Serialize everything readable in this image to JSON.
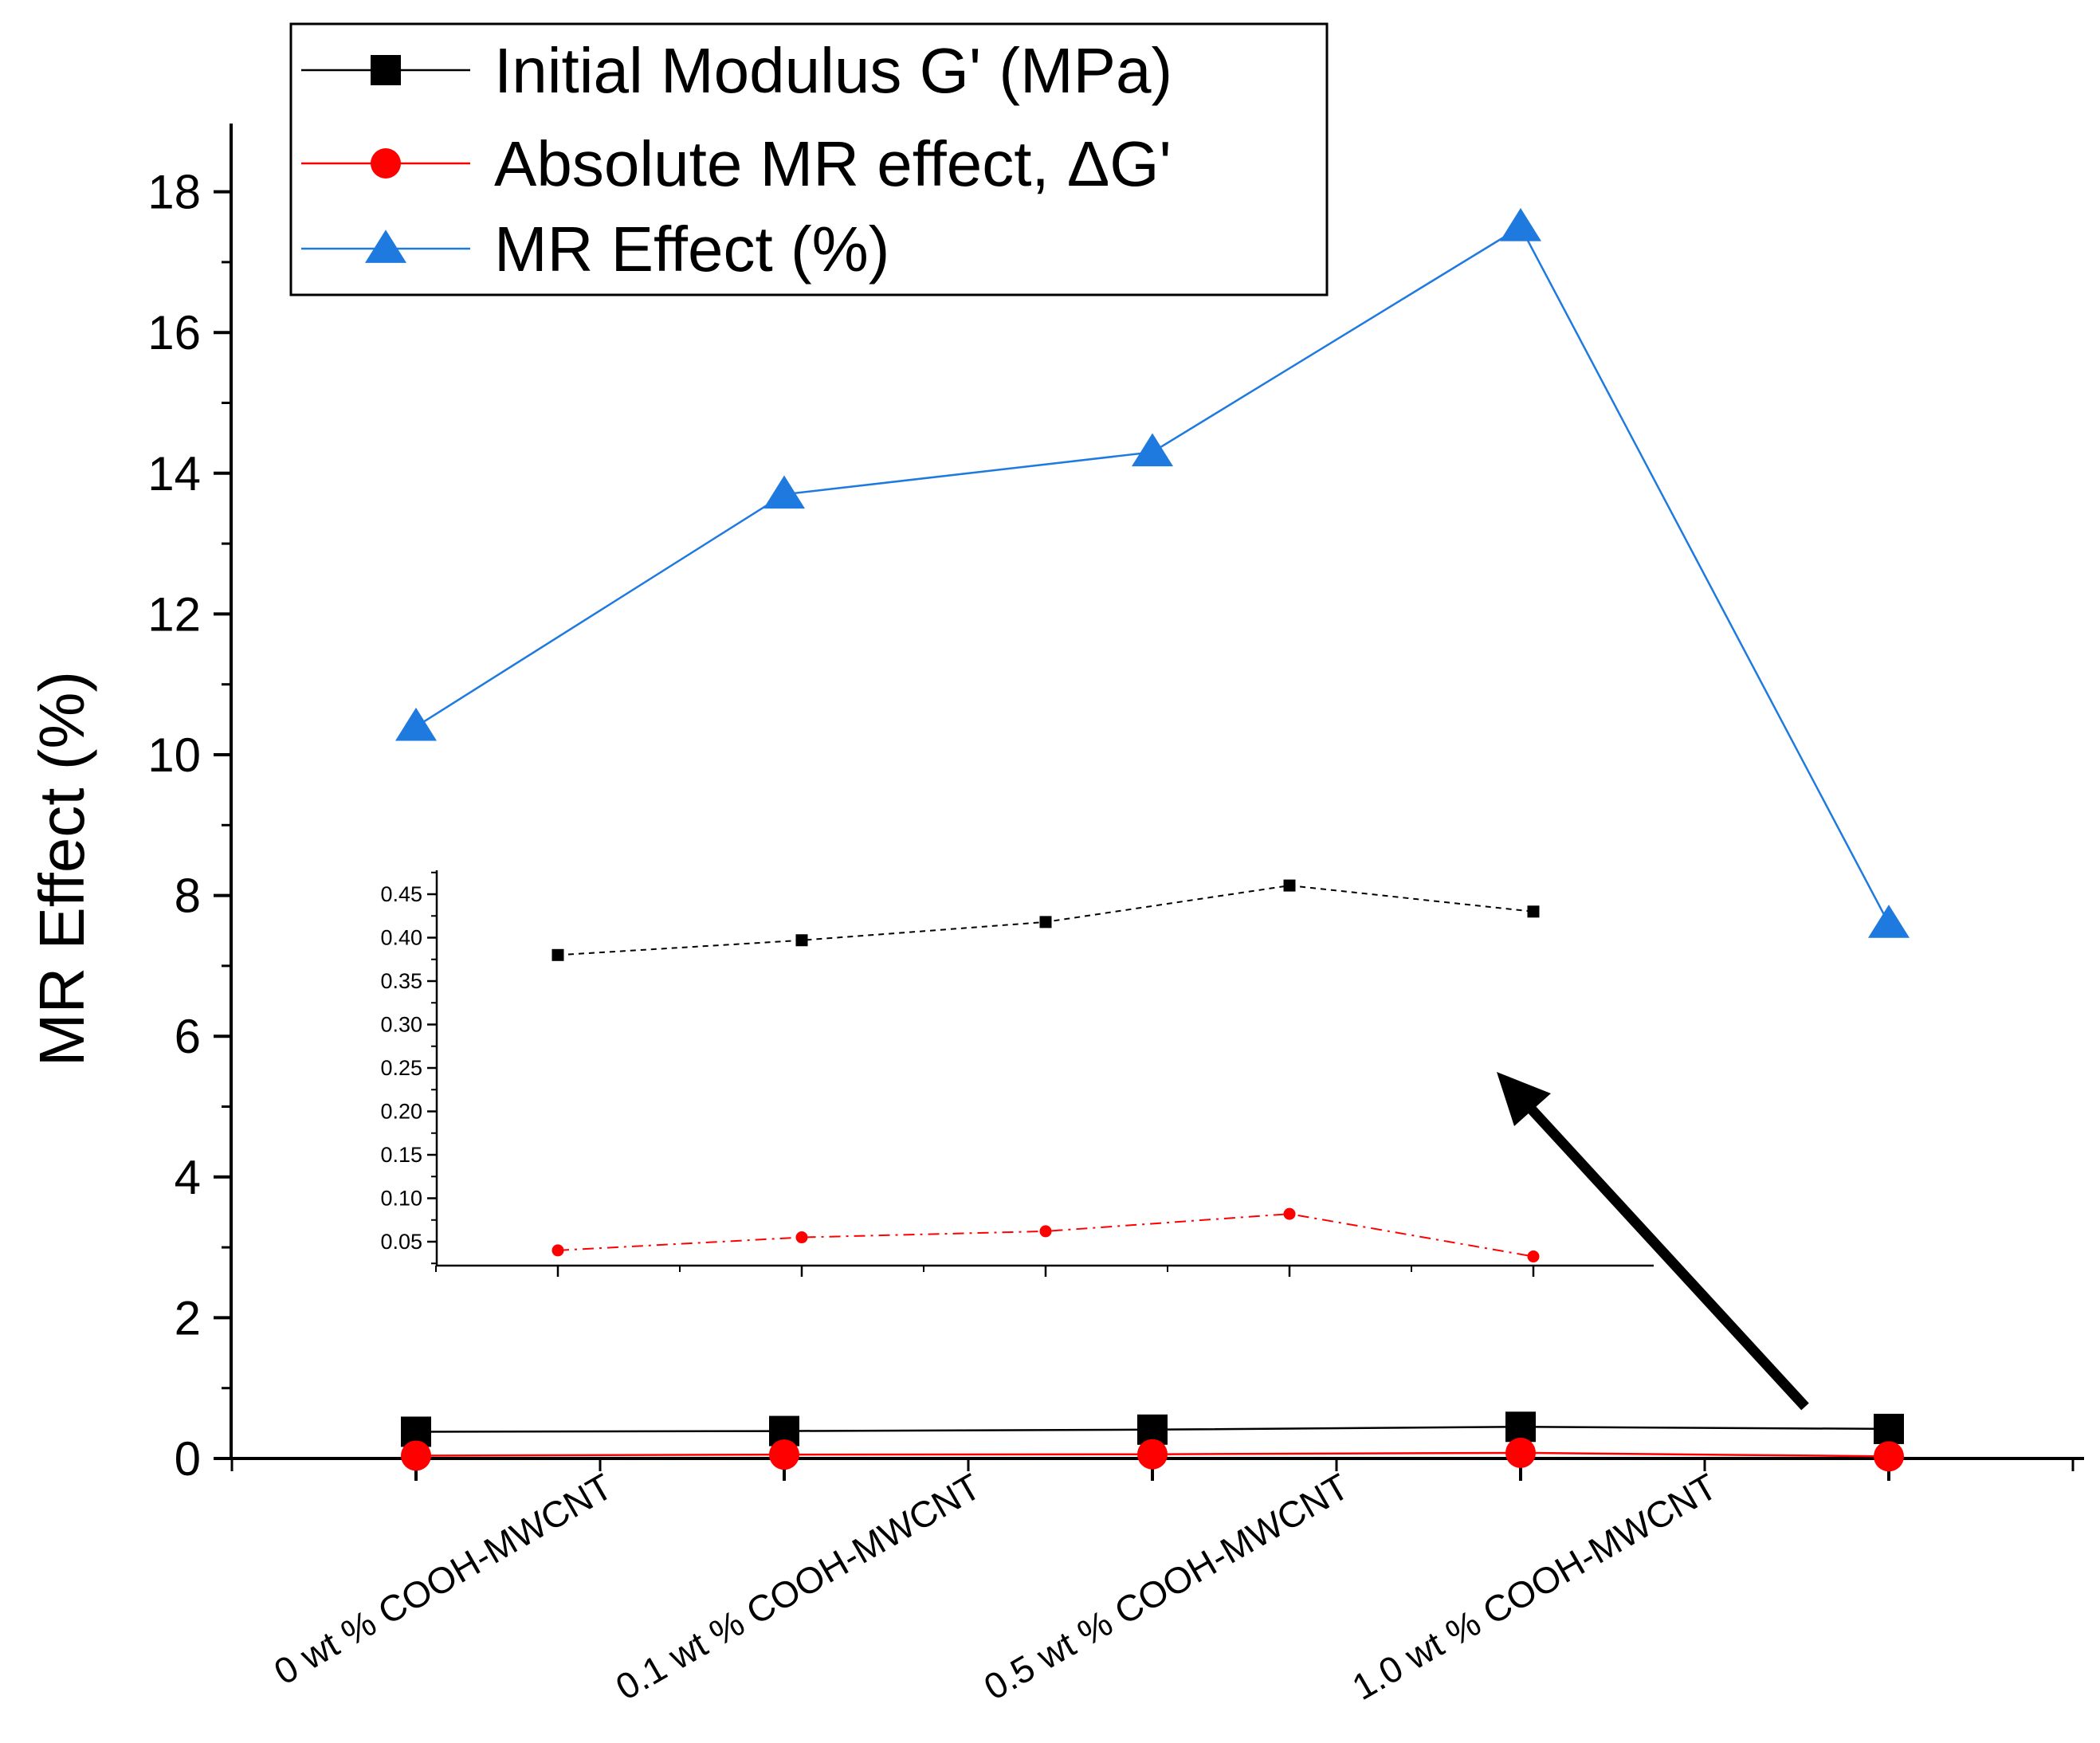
{
  "chart_data": [
    {
      "id": "main",
      "type": "line",
      "title": "",
      "xlabel": "",
      "ylabel": "MR Effect (%)",
      "ylim": [
        0,
        19
      ],
      "yticks": [
        0,
        2,
        4,
        6,
        8,
        10,
        12,
        14,
        16,
        18
      ],
      "categories": [
        "0 wt % COOH-MWCNT",
        "0.1 wt % COOH-MWCNT",
        "0.5 wt % COOH-MWCNT",
        "1.0 wt % COOH-MWCNT",
        ""
      ],
      "labeled_categories": [
        "0 wt % COOH-MWCNT",
        "0.1 wt % COOH-MWCNT",
        "0.5 wt % COOH-MWCNT",
        "1.0 wt % COOH-MWCNT"
      ],
      "legend_position": "top-left",
      "series": [
        {
          "name": "Initial Modulus G' (MPa)",
          "color": "#000000",
          "marker": "square",
          "values": [
            0.38,
            0.39,
            0.41,
            0.45,
            0.42
          ]
        },
        {
          "name": "Absolute MR effect, ΔG'",
          "color": "#ff0000",
          "marker": "circle",
          "values": [
            0.04,
            0.055,
            0.06,
            0.08,
            0.03
          ]
        },
        {
          "name": "MR Effect (%)",
          "color": "#1f7ae0",
          "marker": "triangle",
          "values": [
            10.4,
            13.7,
            14.3,
            17.5,
            7.6
          ]
        }
      ]
    },
    {
      "id": "inset",
      "type": "line",
      "title": "",
      "ylim": [
        0.025,
        0.475
      ],
      "yticks": [
        "0.05",
        "0.10",
        "0.15",
        "0.20",
        "0.25",
        "0.30",
        "0.35",
        "0.40",
        "0.45"
      ],
      "series": [
        {
          "name": "Initial Modulus G' (MPa)",
          "color": "#000000",
          "marker": "square",
          "values": [
            0.38,
            0.397,
            0.418,
            0.46,
            0.43
          ]
        },
        {
          "name": "Absolute MR effect, ΔG'",
          "color": "#ff0000",
          "marker": "circle",
          "values": [
            0.04,
            0.055,
            0.062,
            0.082,
            0.033
          ]
        }
      ]
    }
  ]
}
